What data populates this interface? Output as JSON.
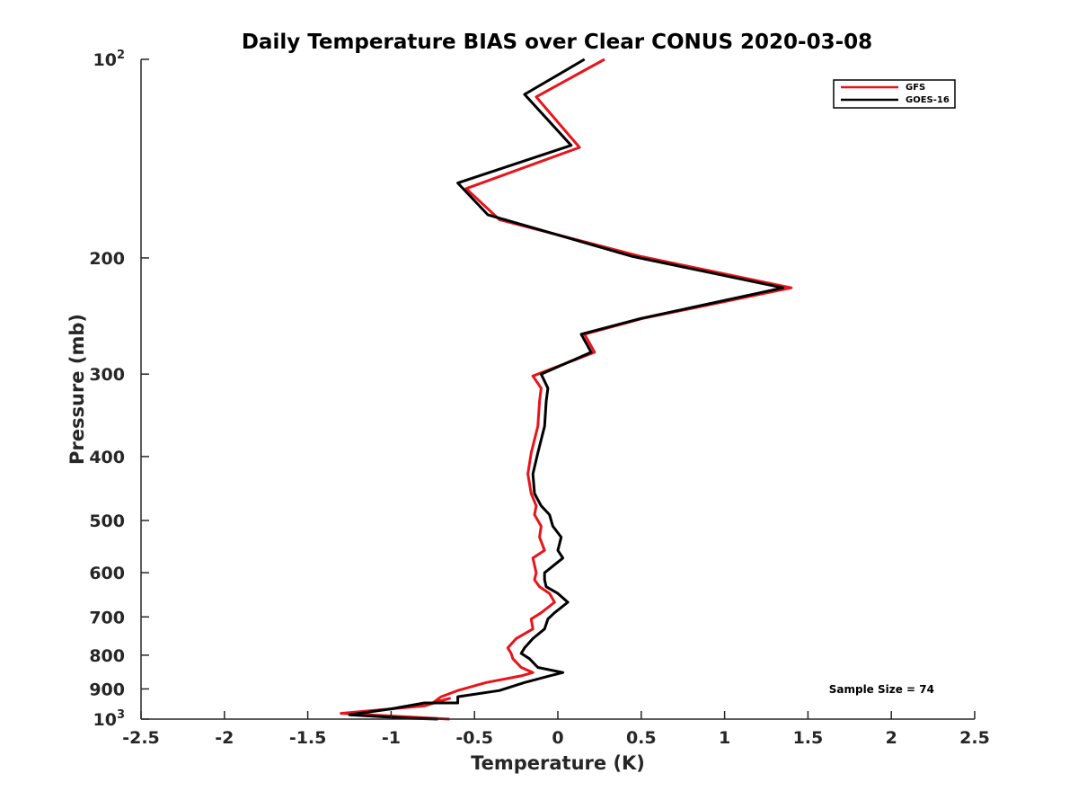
{
  "chart_data": {
    "type": "line",
    "title": "Daily Temperature BIAS over Clear CONUS 2020-03-08",
    "xlabel": "Temperature (K)",
    "ylabel": "Pressure (mb)",
    "xlim": [
      -2.5,
      2.5
    ],
    "ylim": [
      100,
      1000
    ],
    "yscale": "log",
    "y_reversed": true,
    "x_ticks": [
      "-2.5",
      "-2",
      "-1.5",
      "-1",
      "-0.5",
      "0",
      "0.5",
      "1",
      "1.5",
      "2",
      "2.5"
    ],
    "x_tick_values": [
      -2.5,
      -2,
      -1.5,
      -1,
      -0.5,
      0,
      0.5,
      1,
      1.5,
      2,
      2.5
    ],
    "y_ticks": [
      {
        "value": 100,
        "base": "10",
        "exp": "2",
        "label": ""
      },
      {
        "value": 200,
        "label": "200"
      },
      {
        "value": 300,
        "label": "300"
      },
      {
        "value": 400,
        "label": "400"
      },
      {
        "value": 500,
        "label": "500"
      },
      {
        "value": 600,
        "label": "600"
      },
      {
        "value": 700,
        "label": "700"
      },
      {
        "value": 800,
        "label": "800"
      },
      {
        "value": 900,
        "label": "900"
      },
      {
        "value": 1000,
        "base": "10",
        "exp": "3",
        "label": ""
      }
    ],
    "grid": false,
    "legend_position": "top-right",
    "annotation": "Sample Size = 74",
    "series": [
      {
        "name": "GFS",
        "color": "#e8141a",
        "x": [
          0.28,
          -0.13,
          0.13,
          -0.55,
          -0.35,
          0.5,
          1.4,
          0.51,
          0.16,
          0.22,
          -0.15,
          -0.1,
          -0.11,
          -0.12,
          -0.16,
          -0.18,
          -0.16,
          -0.13,
          -0.14,
          -0.1,
          -0.11,
          -0.08,
          -0.15,
          -0.13,
          -0.14,
          -0.11,
          -0.05,
          -0.02,
          -0.1,
          -0.16,
          -0.15,
          -0.25,
          -0.3,
          -0.28,
          -0.27,
          -0.22,
          -0.15,
          -0.22,
          -0.43,
          -0.6,
          -0.7,
          -0.75,
          -0.65,
          -0.8,
          -1.3,
          -0.75,
          -0.65
        ],
        "y": [
          100,
          114,
          136,
          157,
          175,
          199,
          222,
          247,
          261,
          278,
          302,
          315,
          330,
          360,
          395,
          425,
          455,
          475,
          490,
          510,
          530,
          555,
          570,
          600,
          615,
          630,
          645,
          665,
          690,
          705,
          730,
          755,
          780,
          795,
          810,
          835,
          850,
          860,
          880,
          905,
          925,
          945,
          930,
          955,
          980,
          997,
          1000
        ]
      },
      {
        "name": "GOES-16",
        "color": "#000000",
        "x": [
          0.16,
          -0.2,
          0.08,
          -0.6,
          -0.42,
          0.45,
          1.35,
          0.5,
          0.14,
          0.2,
          -0.1,
          -0.06,
          -0.07,
          -0.08,
          -0.12,
          -0.15,
          -0.14,
          -0.1,
          -0.05,
          -0.03,
          0.02,
          0.0,
          0.03,
          -0.08,
          -0.08,
          -0.07,
          0.0,
          0.06,
          -0.02,
          -0.06,
          -0.08,
          -0.15,
          -0.2,
          -0.22,
          -0.17,
          -0.12,
          0.03,
          -0.05,
          -0.2,
          -0.35,
          -0.6,
          -0.6,
          -0.8,
          -1.0,
          -1.25,
          -0.9,
          -0.72
        ],
        "y": [
          100,
          113,
          135,
          154,
          172,
          199,
          222,
          247,
          261,
          278,
          300,
          315,
          330,
          360,
          395,
          425,
          455,
          475,
          490,
          510,
          530,
          555,
          570,
          600,
          615,
          630,
          645,
          665,
          690,
          705,
          730,
          755,
          780,
          795,
          810,
          835,
          850,
          860,
          880,
          905,
          925,
          945,
          945,
          965,
          985,
          997,
          1000
        ]
      }
    ]
  }
}
